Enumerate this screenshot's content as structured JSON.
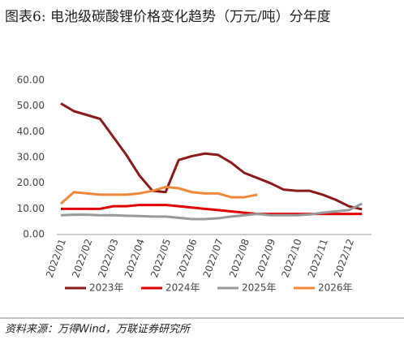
{
  "chart_data": {
    "type": "line",
    "title": "图表6:  电池级碳酸锂价格变化趋势（万元/吨）分年度",
    "source": "资料来源：万得Wind，万联证券研究所",
    "categories": [
      "2022/01",
      null,
      "2022/02",
      null,
      "2022/03",
      null,
      "2022/04",
      null,
      "2022/05",
      null,
      "2022/06",
      null,
      "2022/07",
      null,
      "2022/08",
      null,
      "2022/09",
      null,
      "2022/10",
      null,
      "2022/11",
      null,
      "2022/12",
      null
    ],
    "series": [
      {
        "name": "2023年",
        "color": "#8b1a1a",
        "values": [
          51,
          48,
          46.5,
          45,
          38,
          31,
          23,
          17,
          16.5,
          29,
          30.5,
          31.5,
          31,
          28,
          24,
          22,
          20,
          17.5,
          17,
          17,
          15.5,
          13.5,
          11,
          9.8
        ]
      },
      {
        "name": "2024年",
        "color": "#e00000",
        "values": [
          10,
          10,
          10,
          10,
          11,
          11,
          11.5,
          11.5,
          11.5,
          11,
          10.5,
          10,
          9.5,
          9,
          8.5,
          8,
          8,
          8,
          8,
          8,
          8,
          8,
          8,
          8
        ]
      },
      {
        "name": "2025年",
        "color": "#999999",
        "values": [
          7.5,
          7.7,
          7.7,
          7.5,
          7.5,
          7.3,
          7.2,
          7,
          7,
          6.5,
          6,
          6,
          6.3,
          7,
          7.5,
          8,
          7.5,
          7.5,
          7.5,
          7.8,
          8.5,
          9,
          9.5,
          12
        ]
      },
      {
        "name": "2026年",
        "color": "#f0883a",
        "values": [
          12,
          16.5,
          16,
          15.5,
          15.5,
          15.5,
          16,
          17,
          18.5,
          18,
          16.5,
          16,
          16,
          14.5,
          14.5,
          15.5,
          null,
          null,
          null,
          null,
          null,
          null,
          null,
          null
        ]
      }
    ],
    "ylim": [
      0,
      60
    ],
    "yticks": [
      {
        "value": 0,
        "label": "0.00"
      },
      {
        "value": 10,
        "label": "10.00"
      },
      {
        "value": 20,
        "label": "20.00"
      },
      {
        "value": 30,
        "label": "30.00"
      },
      {
        "value": 40,
        "label": "40.00"
      },
      {
        "value": 50,
        "label": "50.00"
      },
      {
        "value": 60,
        "label": "60.00"
      }
    ]
  }
}
